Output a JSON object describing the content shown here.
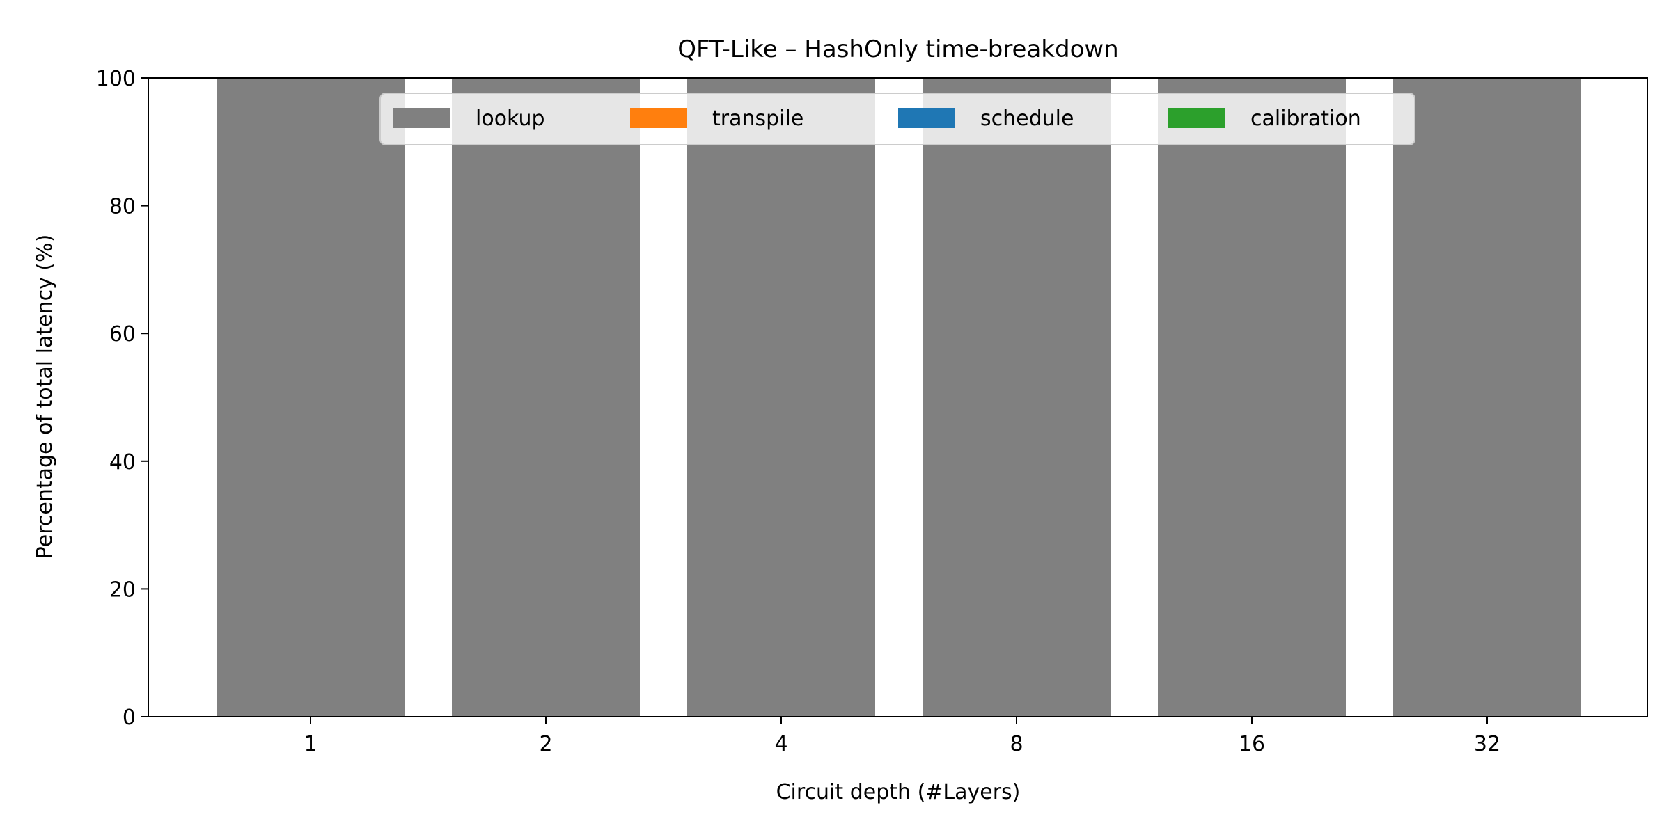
{
  "chart_data": {
    "type": "bar",
    "stacked": true,
    "title": "QFT-Like – HashOnly time-breakdown",
    "xlabel": "Circuit depth (#Layers)",
    "ylabel": "Percentage of total latency (%)",
    "categories": [
      "1",
      "2",
      "4",
      "8",
      "16",
      "32"
    ],
    "ylim": [
      0,
      100
    ],
    "yticks": [
      0,
      20,
      40,
      60,
      80,
      100
    ],
    "grid": false,
    "legend_position": "top-center",
    "series": [
      {
        "name": "lookup",
        "color": "#808080",
        "values": [
          100,
          100,
          100,
          100,
          100,
          100
        ]
      },
      {
        "name": "transpile",
        "color": "#ff7f0e",
        "values": [
          0,
          0,
          0,
          0,
          0,
          0
        ]
      },
      {
        "name": "schedule",
        "color": "#1f77b4",
        "values": [
          0,
          0,
          0,
          0,
          0,
          0
        ]
      },
      {
        "name": "calibration",
        "color": "#2ca02c",
        "values": [
          0,
          0,
          0,
          0,
          0,
          0
        ]
      }
    ]
  }
}
